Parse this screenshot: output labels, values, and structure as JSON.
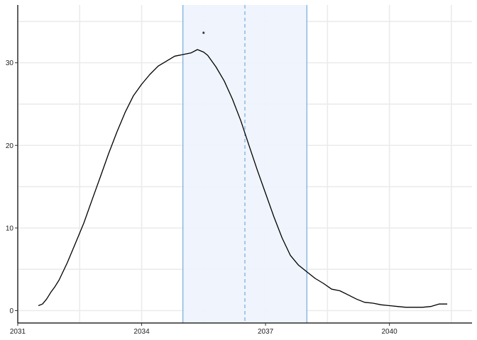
{
  "chart_data": {
    "type": "line",
    "title": "",
    "xlabel": "",
    "ylabel": "",
    "xlim": [
      2031,
      2042
    ],
    "ylim": [
      -1.5,
      37
    ],
    "x_ticks": [
      2031,
      2034,
      2037,
      2040
    ],
    "y_ticks": [
      0,
      10,
      20,
      30
    ],
    "grid": true,
    "legend": "none",
    "colors": {
      "line": "#000000",
      "band_fill": "#eef3fd",
      "band_border": "#5b9bd5",
      "median": "#5b9bd5",
      "grid": "#ebebeb"
    },
    "interval": {
      "start": 2035.0,
      "end": 2038.0
    },
    "median": 2036.5,
    "annotation": {
      "label": "*",
      "x": 2035.5,
      "y": 33.5
    },
    "series": [
      {
        "x": [
          2031.5,
          2031.6,
          2031.7,
          2031.8,
          2031.9,
          2032.0,
          2032.2,
          2032.4,
          2032.6,
          2032.8,
          2033.0,
          2033.2,
          2033.4,
          2033.6,
          2033.8,
          2034.0,
          2034.2,
          2034.4,
          2034.6,
          2034.8,
          2035.0,
          2035.2,
          2035.35,
          2035.5,
          2035.6,
          2035.8,
          2036.0,
          2036.2,
          2036.4,
          2036.6,
          2036.8,
          2037.0,
          2037.2,
          2037.4,
          2037.6,
          2037.8,
          2038.0,
          2038.2,
          2038.4,
          2038.6,
          2038.8,
          2039.0,
          2039.2,
          2039.4,
          2039.6,
          2039.8,
          2040.0,
          2040.2,
          2040.4,
          2040.6,
          2040.8,
          2041.0,
          2041.2,
          2041.4
        ],
        "y": [
          0.6,
          0.8,
          1.4,
          2.2,
          2.9,
          3.7,
          5.8,
          8.2,
          10.6,
          13.4,
          16.2,
          19.0,
          21.6,
          24.0,
          26.0,
          27.4,
          28.6,
          29.6,
          30.2,
          30.8,
          31.0,
          31.2,
          31.6,
          31.3,
          30.9,
          29.5,
          27.8,
          25.6,
          23.0,
          20.0,
          17.0,
          14.2,
          11.4,
          8.8,
          6.7,
          5.5,
          4.7,
          3.9,
          3.3,
          2.6,
          2.4,
          1.9,
          1.4,
          1.0,
          0.9,
          0.7,
          0.6,
          0.5,
          0.4,
          0.4,
          0.4,
          0.5,
          0.8,
          0.8
        ]
      }
    ]
  }
}
